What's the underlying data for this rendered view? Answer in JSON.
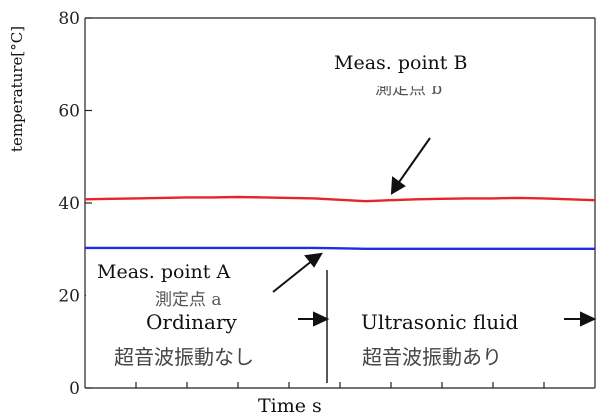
{
  "chart_data": {
    "type": "line",
    "ylabel": "temperature[°C]",
    "xlabel": "Time s",
    "ylim": [
      0,
      80
    ],
    "yticks": [
      0,
      20,
      40,
      60,
      80
    ],
    "grid": false,
    "x": [
      0,
      5,
      10,
      15,
      20,
      25,
      30,
      35,
      40,
      45,
      50,
      55,
      60,
      65,
      70,
      75,
      80,
      85,
      90,
      95,
      100
    ],
    "series": [
      {
        "name": "Meas. point B",
        "color": "#e8232b",
        "values": [
          40.8,
          40.9,
          41.0,
          41.1,
          41.2,
          41.2,
          41.3,
          41.2,
          41.1,
          41.0,
          40.7,
          40.4,
          40.6,
          40.8,
          40.9,
          41.0,
          41.0,
          41.1,
          41.0,
          40.8,
          40.6
        ]
      },
      {
        "name": "Meas. point A",
        "color": "#1f2ee6",
        "values": [
          30.3,
          30.3,
          30.3,
          30.3,
          30.3,
          30.3,
          30.3,
          30.3,
          30.3,
          30.3,
          30.2,
          30.1,
          30.1,
          30.1,
          30.1,
          30.1,
          30.1,
          30.1,
          30.1,
          30.1,
          30.1
        ]
      }
    ],
    "annotations": {
      "point_b_label": "Meas. point B",
      "point_b_label_jp": "測定点 b",
      "point_a_label": "Meas. point A",
      "point_a_label_jp": "測定点 a",
      "ordinary_label": "Ordinary",
      "ordinary_label_jp": "超音波振動なし",
      "ultrasonic_label": "Ultrasonic fluid",
      "ultrasonic_label_jp": "超音波振動あり"
    }
  }
}
